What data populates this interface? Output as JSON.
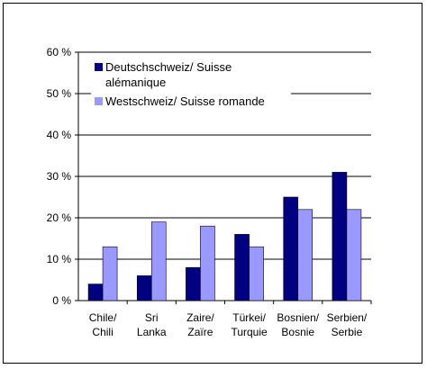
{
  "chart_data": {
    "type": "bar",
    "title": "",
    "xlabel": "",
    "ylabel": "",
    "categories": [
      [
        "Chile/",
        "Chili"
      ],
      [
        "Sri",
        "Lanka"
      ],
      [
        "Zaire/",
        "Zaïre"
      ],
      [
        "Türkei/",
        "Turquie"
      ],
      [
        "Bosnien/",
        "Bosnie"
      ],
      [
        "Serbien/",
        "Serbie"
      ]
    ],
    "series": [
      {
        "name_lines": [
          "Deutschschweiz/ Suisse",
          "alémanique"
        ],
        "color": "#000080",
        "values": [
          4,
          6,
          8,
          16,
          25,
          31
        ]
      },
      {
        "name_lines": [
          "Westschweiz/ Suisse romande"
        ],
        "color": "#9999FF",
        "values": [
          13,
          19,
          18,
          13,
          22,
          22
        ]
      }
    ],
    "ylim": [
      0,
      60
    ],
    "yticks": [
      0,
      10,
      20,
      30,
      40,
      50,
      60
    ],
    "ytick_labels": [
      "0 %",
      "10 %",
      "20 %",
      "30 %",
      "40 %",
      "50 %",
      "60 %"
    ],
    "grid": true,
    "legend_position": "top-left-inside"
  }
}
